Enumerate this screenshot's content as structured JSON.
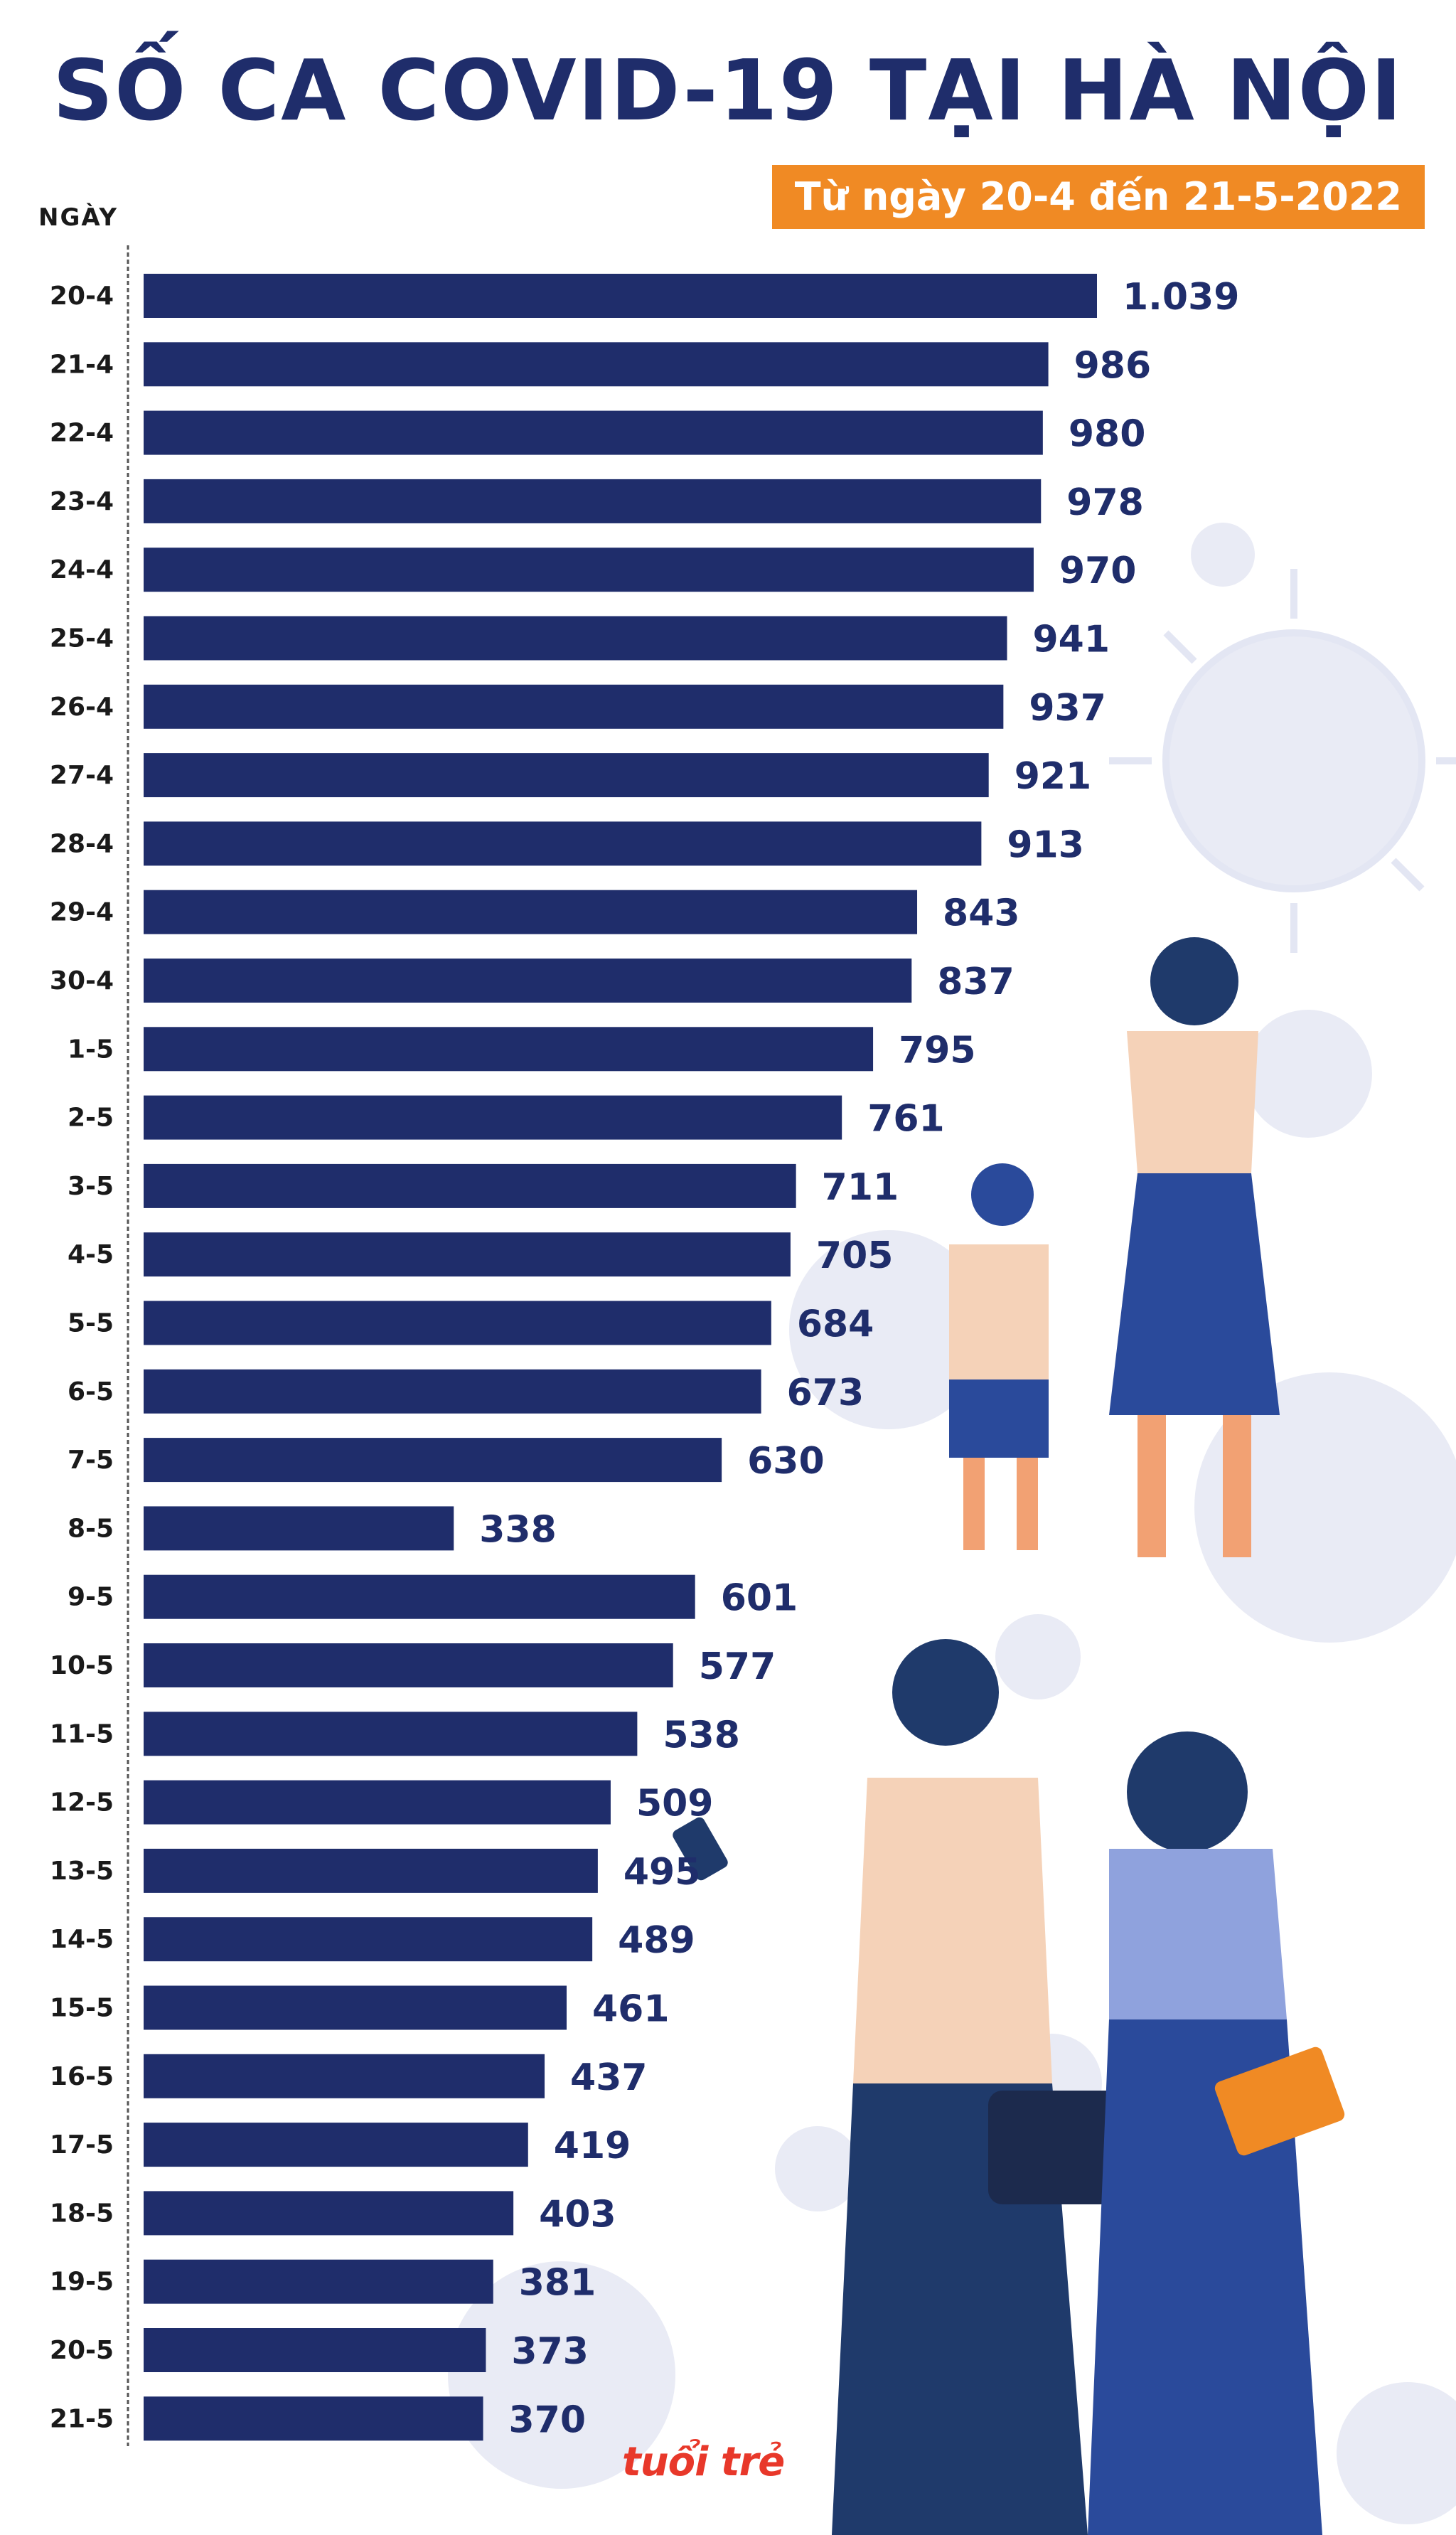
{
  "title": "SỐ CA COVID-19 TẠI HÀ NỘI",
  "date_range": "Từ ngày 20-4 đến 21-5-2022",
  "colors": {
    "bar": "#1f2d6b",
    "title": "#1f2d6b",
    "accent": "#f08a24",
    "virus": "#e6e8f4",
    "label": "#1f2d6b"
  },
  "brand": "tuổi trẻ",
  "chart_data": {
    "type": "bar",
    "orientation": "horizontal",
    "title": "SỐ CA COVID-19 TẠI HÀ NỘI",
    "subtitle": "Từ ngày 20-4 đến 21-5-2022",
    "ylabel": "NGÀY",
    "xlabel": "",
    "xlim": [
      0,
      1039
    ],
    "grid": false,
    "categories": [
      "20-4",
      "21-4",
      "22-4",
      "23-4",
      "24-4",
      "25-4",
      "26-4",
      "27-4",
      "28-4",
      "29-4",
      "30-4",
      "1-5",
      "2-5",
      "3-5",
      "4-5",
      "5-5",
      "6-5",
      "7-5",
      "8-5",
      "9-5",
      "10-5",
      "11-5",
      "12-5",
      "13-5",
      "14-5",
      "15-5",
      "16-5",
      "17-5",
      "18-5",
      "19-5",
      "20-5",
      "21-5"
    ],
    "values": [
      1039,
      986,
      980,
      978,
      970,
      941,
      937,
      921,
      913,
      843,
      837,
      795,
      761,
      711,
      705,
      684,
      673,
      630,
      338,
      601,
      577,
      538,
      509,
      495,
      489,
      461,
      437,
      419,
      403,
      381,
      373,
      370
    ],
    "value_labels": [
      "1.039",
      "986",
      "980",
      "978",
      "970",
      "941",
      "937",
      "921",
      "913",
      "843",
      "837",
      "795",
      "761",
      "711",
      "705",
      "684",
      "673",
      "630",
      "338",
      "601",
      "577",
      "538",
      "509",
      "495",
      "489",
      "461",
      "437",
      "419",
      "403",
      "381",
      "373",
      "370"
    ]
  }
}
